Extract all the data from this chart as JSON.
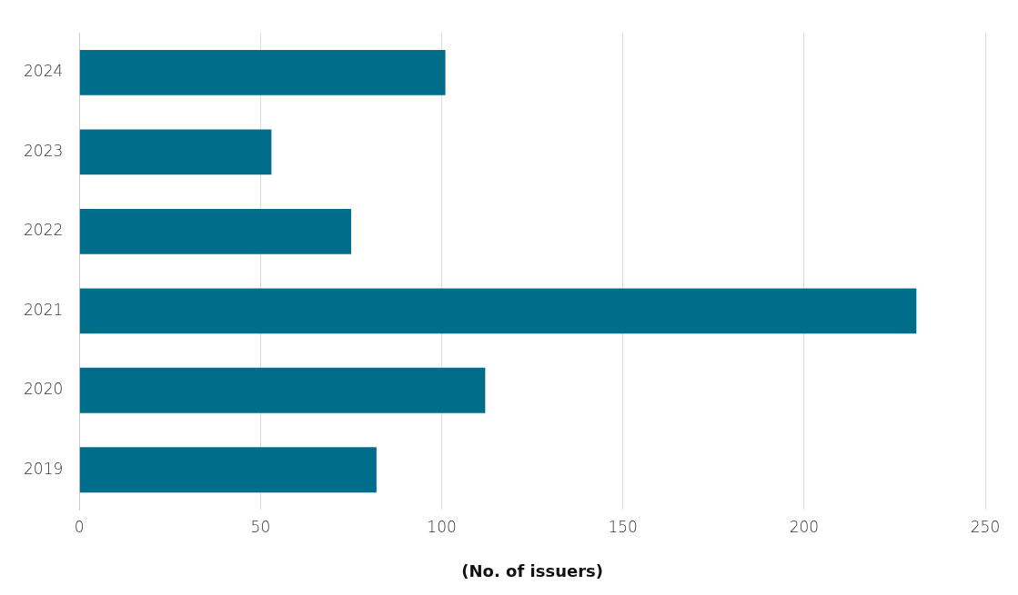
{
  "chart_data": {
    "type": "bar",
    "orientation": "horizontal",
    "categories": [
      "2024",
      "2023",
      "2022",
      "2021",
      "2020",
      "2019"
    ],
    "values": [
      101,
      53,
      75,
      231,
      112,
      82
    ],
    "color": "#006e8a",
    "xlabel": "(No. of issuers)",
    "xlim": [
      0,
      250
    ],
    "xticks": [
      0,
      50,
      100,
      150,
      200,
      250
    ],
    "grid": "x",
    "legend": false
  }
}
